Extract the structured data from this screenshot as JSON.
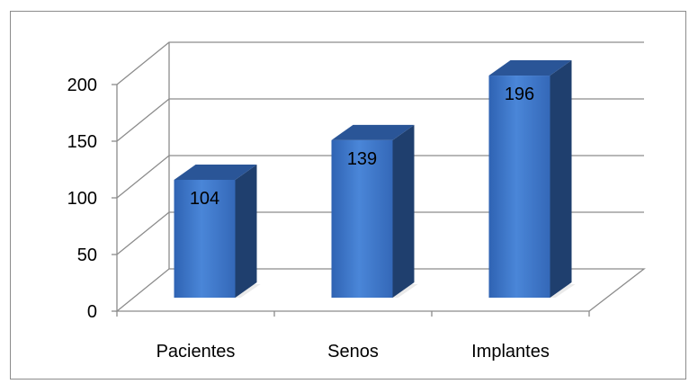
{
  "chart_data": {
    "type": "bar",
    "style": "3d-column",
    "categories": [
      "Pacientes",
      "Senos",
      "Implantes"
    ],
    "values": [
      104,
      139,
      196
    ],
    "data_labels": [
      "104",
      "139",
      "196"
    ],
    "title": "",
    "xlabel": "",
    "ylabel": "",
    "ylim": [
      0,
      200
    ],
    "yticks": [
      "0",
      "50",
      "100",
      "150",
      "200"
    ],
    "grid": true,
    "legend": "none",
    "colors": {
      "bar_front": "#3b74c8",
      "bar_front_light": "#4a86d8",
      "bar_side": "#1f3f6e",
      "bar_top": "#2a5597",
      "grid": "#8c8c8c"
    }
  }
}
